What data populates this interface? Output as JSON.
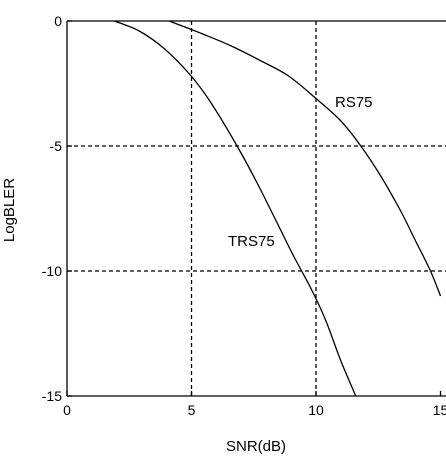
{
  "chart_data": {
    "type": "line",
    "xlabel": "SNR(dB)",
    "ylabel": "LogBLER",
    "xlim": [
      0,
      15
    ],
    "ylim": [
      -15,
      0
    ],
    "xticks": [
      0,
      5,
      10,
      15
    ],
    "yticks": [
      0,
      -5,
      -10,
      -15
    ],
    "xtick_labels": [
      "0",
      "5",
      "10",
      "15"
    ],
    "ytick_labels": [
      "0",
      "-5",
      "-10",
      "-15"
    ],
    "grid": true,
    "grid_style": "dashed",
    "series": [
      {
        "name": "TRS75",
        "x": [
          1.9,
          2.9,
          3.9,
          4.9,
          5.6,
          6.3,
          7.0,
          7.7,
          8.4,
          9.1,
          9.8,
          10.4,
          11.0,
          11.6
        ],
        "y": [
          0,
          -0.4,
          -1.1,
          -2.1,
          -3.0,
          -4.1,
          -5.3,
          -6.6,
          -8.0,
          -9.4,
          -10.7,
          -12.0,
          -13.6,
          -15.0
        ]
      },
      {
        "name": "RS75",
        "x": [
          4.1,
          5.4,
          6.6,
          7.8,
          8.9,
          10.0,
          11.0,
          11.8,
          12.6,
          13.4,
          14.0,
          14.6,
          15.0
        ],
        "y": [
          0,
          -0.5,
          -1.0,
          -1.6,
          -2.2,
          -3.1,
          -4.0,
          -5.0,
          -6.2,
          -7.6,
          -8.8,
          -10.0,
          -11.0
        ]
      }
    ]
  }
}
